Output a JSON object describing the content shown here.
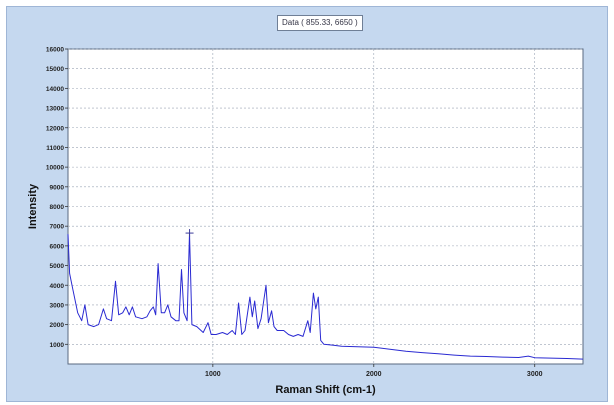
{
  "readout": "Data ( 855.33, 6650 )",
  "chart_data": {
    "type": "line",
    "title": "",
    "xlabel": "Raman Shift (cm-1)",
    "ylabel": "Intensity",
    "xlim": [
      100,
      3300
    ],
    "ylim": [
      0,
      16000
    ],
    "x_ticks": [
      1000,
      2000,
      3000
    ],
    "y_ticks": [
      1000,
      2000,
      3000,
      4000,
      5000,
      6000,
      7000,
      8000,
      9000,
      10000,
      11000,
      12000,
      13000,
      14000,
      15000,
      16000
    ],
    "grid": true,
    "cursor": {
      "x": 855.33,
      "y": 6650
    },
    "series": [
      {
        "color": "#2a2ad2",
        "points": [
          [
            100,
            6600
          ],
          [
            110,
            4600
          ],
          [
            130,
            3800
          ],
          [
            160,
            2600
          ],
          [
            185,
            2200
          ],
          [
            205,
            3000
          ],
          [
            225,
            2000
          ],
          [
            260,
            1900
          ],
          [
            290,
            2000
          ],
          [
            320,
            2800
          ],
          [
            340,
            2300
          ],
          [
            370,
            2200
          ],
          [
            395,
            4200
          ],
          [
            415,
            2500
          ],
          [
            440,
            2600
          ],
          [
            460,
            2900
          ],
          [
            480,
            2500
          ],
          [
            500,
            2900
          ],
          [
            520,
            2400
          ],
          [
            560,
            2300
          ],
          [
            590,
            2400
          ],
          [
            610,
            2700
          ],
          [
            630,
            2900
          ],
          [
            645,
            2500
          ],
          [
            660,
            5100
          ],
          [
            680,
            2600
          ],
          [
            700,
            2600
          ],
          [
            720,
            3000
          ],
          [
            740,
            2400
          ],
          [
            770,
            2200
          ],
          [
            790,
            2200
          ],
          [
            805,
            4800
          ],
          [
            820,
            2600
          ],
          [
            840,
            2200
          ],
          [
            855,
            6650
          ],
          [
            870,
            2000
          ],
          [
            900,
            1900
          ],
          [
            940,
            1600
          ],
          [
            970,
            2100
          ],
          [
            990,
            1500
          ],
          [
            1020,
            1500
          ],
          [
            1060,
            1600
          ],
          [
            1090,
            1500
          ],
          [
            1120,
            1700
          ],
          [
            1140,
            1500
          ],
          [
            1160,
            3100
          ],
          [
            1180,
            1500
          ],
          [
            1200,
            1700
          ],
          [
            1230,
            3400
          ],
          [
            1245,
            2400
          ],
          [
            1260,
            3200
          ],
          [
            1280,
            1800
          ],
          [
            1300,
            2300
          ],
          [
            1330,
            4000
          ],
          [
            1345,
            2100
          ],
          [
            1365,
            2700
          ],
          [
            1380,
            1900
          ],
          [
            1400,
            1700
          ],
          [
            1440,
            1700
          ],
          [
            1470,
            1500
          ],
          [
            1500,
            1400
          ],
          [
            1530,
            1500
          ],
          [
            1560,
            1400
          ],
          [
            1590,
            2200
          ],
          [
            1605,
            1600
          ],
          [
            1625,
            3600
          ],
          [
            1640,
            2800
          ],
          [
            1655,
            3400
          ],
          [
            1670,
            1200
          ],
          [
            1690,
            1000
          ],
          [
            1750,
            950
          ],
          [
            1800,
            900
          ],
          [
            1900,
            880
          ],
          [
            2000,
            850
          ],
          [
            2100,
            750
          ],
          [
            2200,
            650
          ],
          [
            2300,
            580
          ],
          [
            2400,
            520
          ],
          [
            2500,
            450
          ],
          [
            2600,
            400
          ],
          [
            2700,
            380
          ],
          [
            2800,
            350
          ],
          [
            2900,
            330
          ],
          [
            2960,
            400
          ],
          [
            3000,
            320
          ],
          [
            3100,
            300
          ],
          [
            3200,
            280
          ],
          [
            3300,
            250
          ]
        ]
      }
    ]
  }
}
